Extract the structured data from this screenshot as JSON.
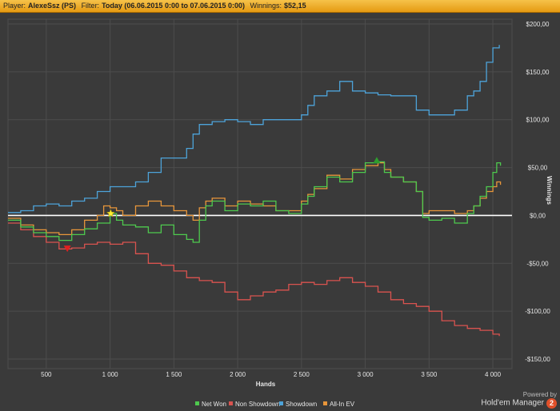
{
  "header": {
    "player_label": "Player:",
    "player_value": "AlexeSsz (PS)",
    "filter_label": "Filter:",
    "filter_value": "Today (06.06.2015 0:00 to 07.06.2015 0:00)",
    "winnings_label": "Winnings:",
    "winnings_value": "$52,15"
  },
  "brand": {
    "powered_by": "Powered by",
    "name": "Hold'em Manager",
    "badge": "2"
  },
  "colors": {
    "background": "#3a3a3a",
    "grid": "#4d4d4d",
    "zero_line": "#ffffff",
    "net_won": "#4ec94e",
    "non_showdown": "#d9534f",
    "showdown": "#4da3d9",
    "allin_ev": "#e8963a"
  },
  "chart_data": {
    "type": "line",
    "xlabel": "Hands",
    "ylabel": "Winnings",
    "xlim": [
      200,
      4150
    ],
    "ylim": [
      -160,
      205
    ],
    "x_ticks": [
      500,
      1000,
      1500,
      2000,
      2500,
      3000,
      3500,
      4000
    ],
    "x_tick_labels": [
      "500",
      "1 000",
      "1 500",
      "2 000",
      "2 500",
      "3 000",
      "3 500",
      "4 000"
    ],
    "y_ticks": [
      -150,
      -100,
      -50,
      0,
      50,
      100,
      150,
      200
    ],
    "y_tick_labels": [
      "-$150,00",
      "-$100,00",
      "-$50,00",
      "$0,00",
      "$50,00",
      "$100,00",
      "$150,00",
      "$200,00"
    ],
    "legend_position": "bottom",
    "series": [
      {
        "name": "Net Won",
        "color": "#4ec94e",
        "points": [
          [
            200,
            -5
          ],
          [
            300,
            -12
          ],
          [
            400,
            -18
          ],
          [
            500,
            -22
          ],
          [
            600,
            -26
          ],
          [
            700,
            -20
          ],
          [
            800,
            -14
          ],
          [
            900,
            -8
          ],
          [
            1000,
            2
          ],
          [
            1050,
            -5
          ],
          [
            1100,
            -10
          ],
          [
            1200,
            -12
          ],
          [
            1300,
            -18
          ],
          [
            1400,
            -10
          ],
          [
            1500,
            -20
          ],
          [
            1600,
            -25
          ],
          [
            1650,
            -28
          ],
          [
            1700,
            -5
          ],
          [
            1750,
            10
          ],
          [
            1800,
            15
          ],
          [
            1900,
            5
          ],
          [
            2000,
            12
          ],
          [
            2100,
            10
          ],
          [
            2200,
            15
          ],
          [
            2300,
            5
          ],
          [
            2400,
            2
          ],
          [
            2500,
            12
          ],
          [
            2550,
            20
          ],
          [
            2600,
            30
          ],
          [
            2700,
            40
          ],
          [
            2800,
            35
          ],
          [
            2900,
            45
          ],
          [
            3000,
            55
          ],
          [
            3100,
            56
          ],
          [
            3150,
            45
          ],
          [
            3200,
            40
          ],
          [
            3300,
            35
          ],
          [
            3400,
            25
          ],
          [
            3450,
            -2
          ],
          [
            3500,
            -5
          ],
          [
            3600,
            -3
          ],
          [
            3700,
            -8
          ],
          [
            3800,
            2
          ],
          [
            3850,
            10
          ],
          [
            3900,
            20
          ],
          [
            3950,
            30
          ],
          [
            4000,
            45
          ],
          [
            4030,
            55
          ],
          [
            4060,
            52
          ]
        ]
      },
      {
        "name": "Non Showdown",
        "color": "#d9534f",
        "points": [
          [
            200,
            -8
          ],
          [
            300,
            -15
          ],
          [
            400,
            -22
          ],
          [
            500,
            -28
          ],
          [
            600,
            -35
          ],
          [
            700,
            -34
          ],
          [
            800,
            -30
          ],
          [
            900,
            -28
          ],
          [
            1000,
            -30
          ],
          [
            1100,
            -28
          ],
          [
            1200,
            -40
          ],
          [
            1300,
            -50
          ],
          [
            1400,
            -52
          ],
          [
            1500,
            -58
          ],
          [
            1600,
            -65
          ],
          [
            1700,
            -68
          ],
          [
            1800,
            -70
          ],
          [
            1900,
            -80
          ],
          [
            2000,
            -88
          ],
          [
            2100,
            -84
          ],
          [
            2200,
            -80
          ],
          [
            2300,
            -78
          ],
          [
            2400,
            -72
          ],
          [
            2500,
            -70
          ],
          [
            2600,
            -72
          ],
          [
            2700,
            -68
          ],
          [
            2800,
            -65
          ],
          [
            2900,
            -70
          ],
          [
            3000,
            -74
          ],
          [
            3100,
            -80
          ],
          [
            3200,
            -88
          ],
          [
            3300,
            -92
          ],
          [
            3400,
            -95
          ],
          [
            3500,
            -100
          ],
          [
            3600,
            -110
          ],
          [
            3700,
            -115
          ],
          [
            3800,
            -118
          ],
          [
            3900,
            -120
          ],
          [
            4000,
            -124
          ],
          [
            4050,
            -126
          ]
        ]
      },
      {
        "name": "Showdown",
        "color": "#4da3d9",
        "points": [
          [
            200,
            3
          ],
          [
            300,
            5
          ],
          [
            400,
            10
          ],
          [
            500,
            12
          ],
          [
            600,
            10
          ],
          [
            700,
            15
          ],
          [
            800,
            18
          ],
          [
            900,
            25
          ],
          [
            1000,
            30
          ],
          [
            1100,
            30
          ],
          [
            1200,
            35
          ],
          [
            1300,
            45
          ],
          [
            1400,
            60
          ],
          [
            1500,
            60
          ],
          [
            1600,
            70
          ],
          [
            1650,
            85
          ],
          [
            1700,
            95
          ],
          [
            1800,
            98
          ],
          [
            1900,
            100
          ],
          [
            2000,
            98
          ],
          [
            2100,
            95
          ],
          [
            2200,
            100
          ],
          [
            2300,
            100
          ],
          [
            2400,
            100
          ],
          [
            2500,
            105
          ],
          [
            2550,
            115
          ],
          [
            2600,
            125
          ],
          [
            2700,
            130
          ],
          [
            2800,
            140
          ],
          [
            2900,
            130
          ],
          [
            3000,
            128
          ],
          [
            3100,
            126
          ],
          [
            3200,
            125
          ],
          [
            3300,
            125
          ],
          [
            3400,
            110
          ],
          [
            3500,
            105
          ],
          [
            3600,
            105
          ],
          [
            3700,
            110
          ],
          [
            3800,
            125
          ],
          [
            3850,
            130
          ],
          [
            3900,
            140
          ],
          [
            3950,
            160
          ],
          [
            4000,
            175
          ],
          [
            4050,
            178
          ]
        ]
      },
      {
        "name": "All-In EV",
        "color": "#e8963a",
        "points": [
          [
            200,
            -3
          ],
          [
            300,
            -10
          ],
          [
            400,
            -15
          ],
          [
            500,
            -18
          ],
          [
            600,
            -20
          ],
          [
            700,
            -15
          ],
          [
            800,
            -5
          ],
          [
            900,
            0
          ],
          [
            950,
            10
          ],
          [
            1000,
            8
          ],
          [
            1050,
            5
          ],
          [
            1100,
            0
          ],
          [
            1200,
            10
          ],
          [
            1300,
            15
          ],
          [
            1400,
            10
          ],
          [
            1500,
            5
          ],
          [
            1600,
            0
          ],
          [
            1650,
            -5
          ],
          [
            1700,
            8
          ],
          [
            1750,
            15
          ],
          [
            1800,
            18
          ],
          [
            1900,
            10
          ],
          [
            2000,
            15
          ],
          [
            2100,
            12
          ],
          [
            2200,
            10
          ],
          [
            2300,
            5
          ],
          [
            2400,
            5
          ],
          [
            2500,
            15
          ],
          [
            2550,
            22
          ],
          [
            2600,
            28
          ],
          [
            2700,
            42
          ],
          [
            2800,
            38
          ],
          [
            2900,
            48
          ],
          [
            3000,
            52
          ],
          [
            3100,
            55
          ],
          [
            3150,
            48
          ],
          [
            3200,
            40
          ],
          [
            3300,
            35
          ],
          [
            3400,
            25
          ],
          [
            3450,
            2
          ],
          [
            3500,
            5
          ],
          [
            3600,
            5
          ],
          [
            3700,
            2
          ],
          [
            3800,
            5
          ],
          [
            3850,
            10
          ],
          [
            3900,
            18
          ],
          [
            3950,
            25
          ],
          [
            4000,
            30
          ],
          [
            4030,
            35
          ],
          [
            4060,
            32
          ]
        ]
      }
    ],
    "markers": [
      {
        "name": "max-marker",
        "shape": "triangle-up",
        "color": "#2e9e2e",
        "x": 3090,
        "y": 57
      },
      {
        "name": "min-marker",
        "shape": "triangle-down",
        "color": "#e02020",
        "x": 665,
        "y": -34
      },
      {
        "name": "star-marker",
        "shape": "star",
        "color": "#ffee33",
        "x": 1005,
        "y": 2
      }
    ]
  }
}
